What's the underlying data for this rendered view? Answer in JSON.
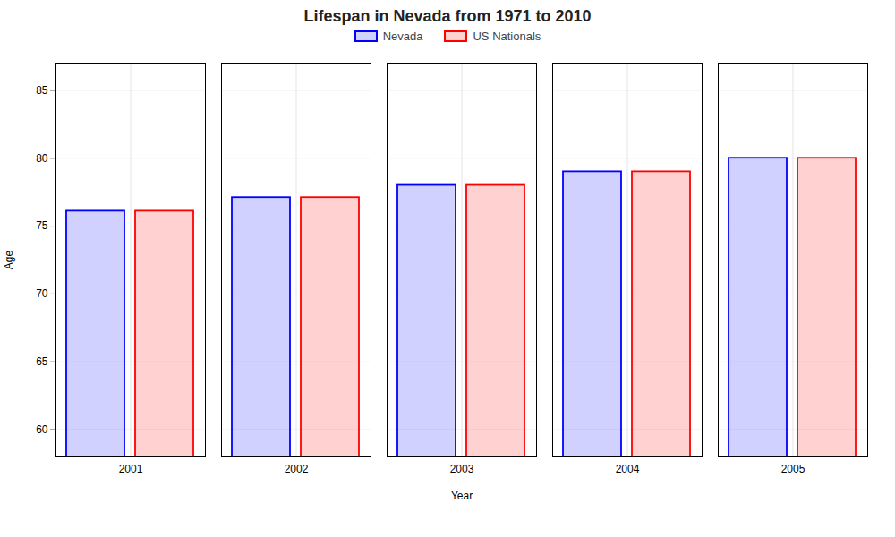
{
  "chart_data": {
    "type": "bar",
    "title": "Lifespan in Nevada from 1971 to 2010",
    "xlabel": "Year",
    "ylabel": "Age",
    "categories": [
      "2001",
      "2002",
      "2003",
      "2004",
      "2005"
    ],
    "series": [
      {
        "name": "Nevada",
        "color": "#0000ff",
        "values": [
          76.1,
          77.1,
          78.0,
          79.0,
          80.0
        ]
      },
      {
        "name": "US Nationals",
        "color": "#ff0000",
        "values": [
          76.1,
          77.1,
          78.0,
          79.0,
          80.0
        ]
      }
    ],
    "ylim": [
      58,
      87
    ],
    "yticks": [
      60,
      65,
      70,
      75,
      80,
      85
    ],
    "grid": true,
    "legend": "top"
  }
}
